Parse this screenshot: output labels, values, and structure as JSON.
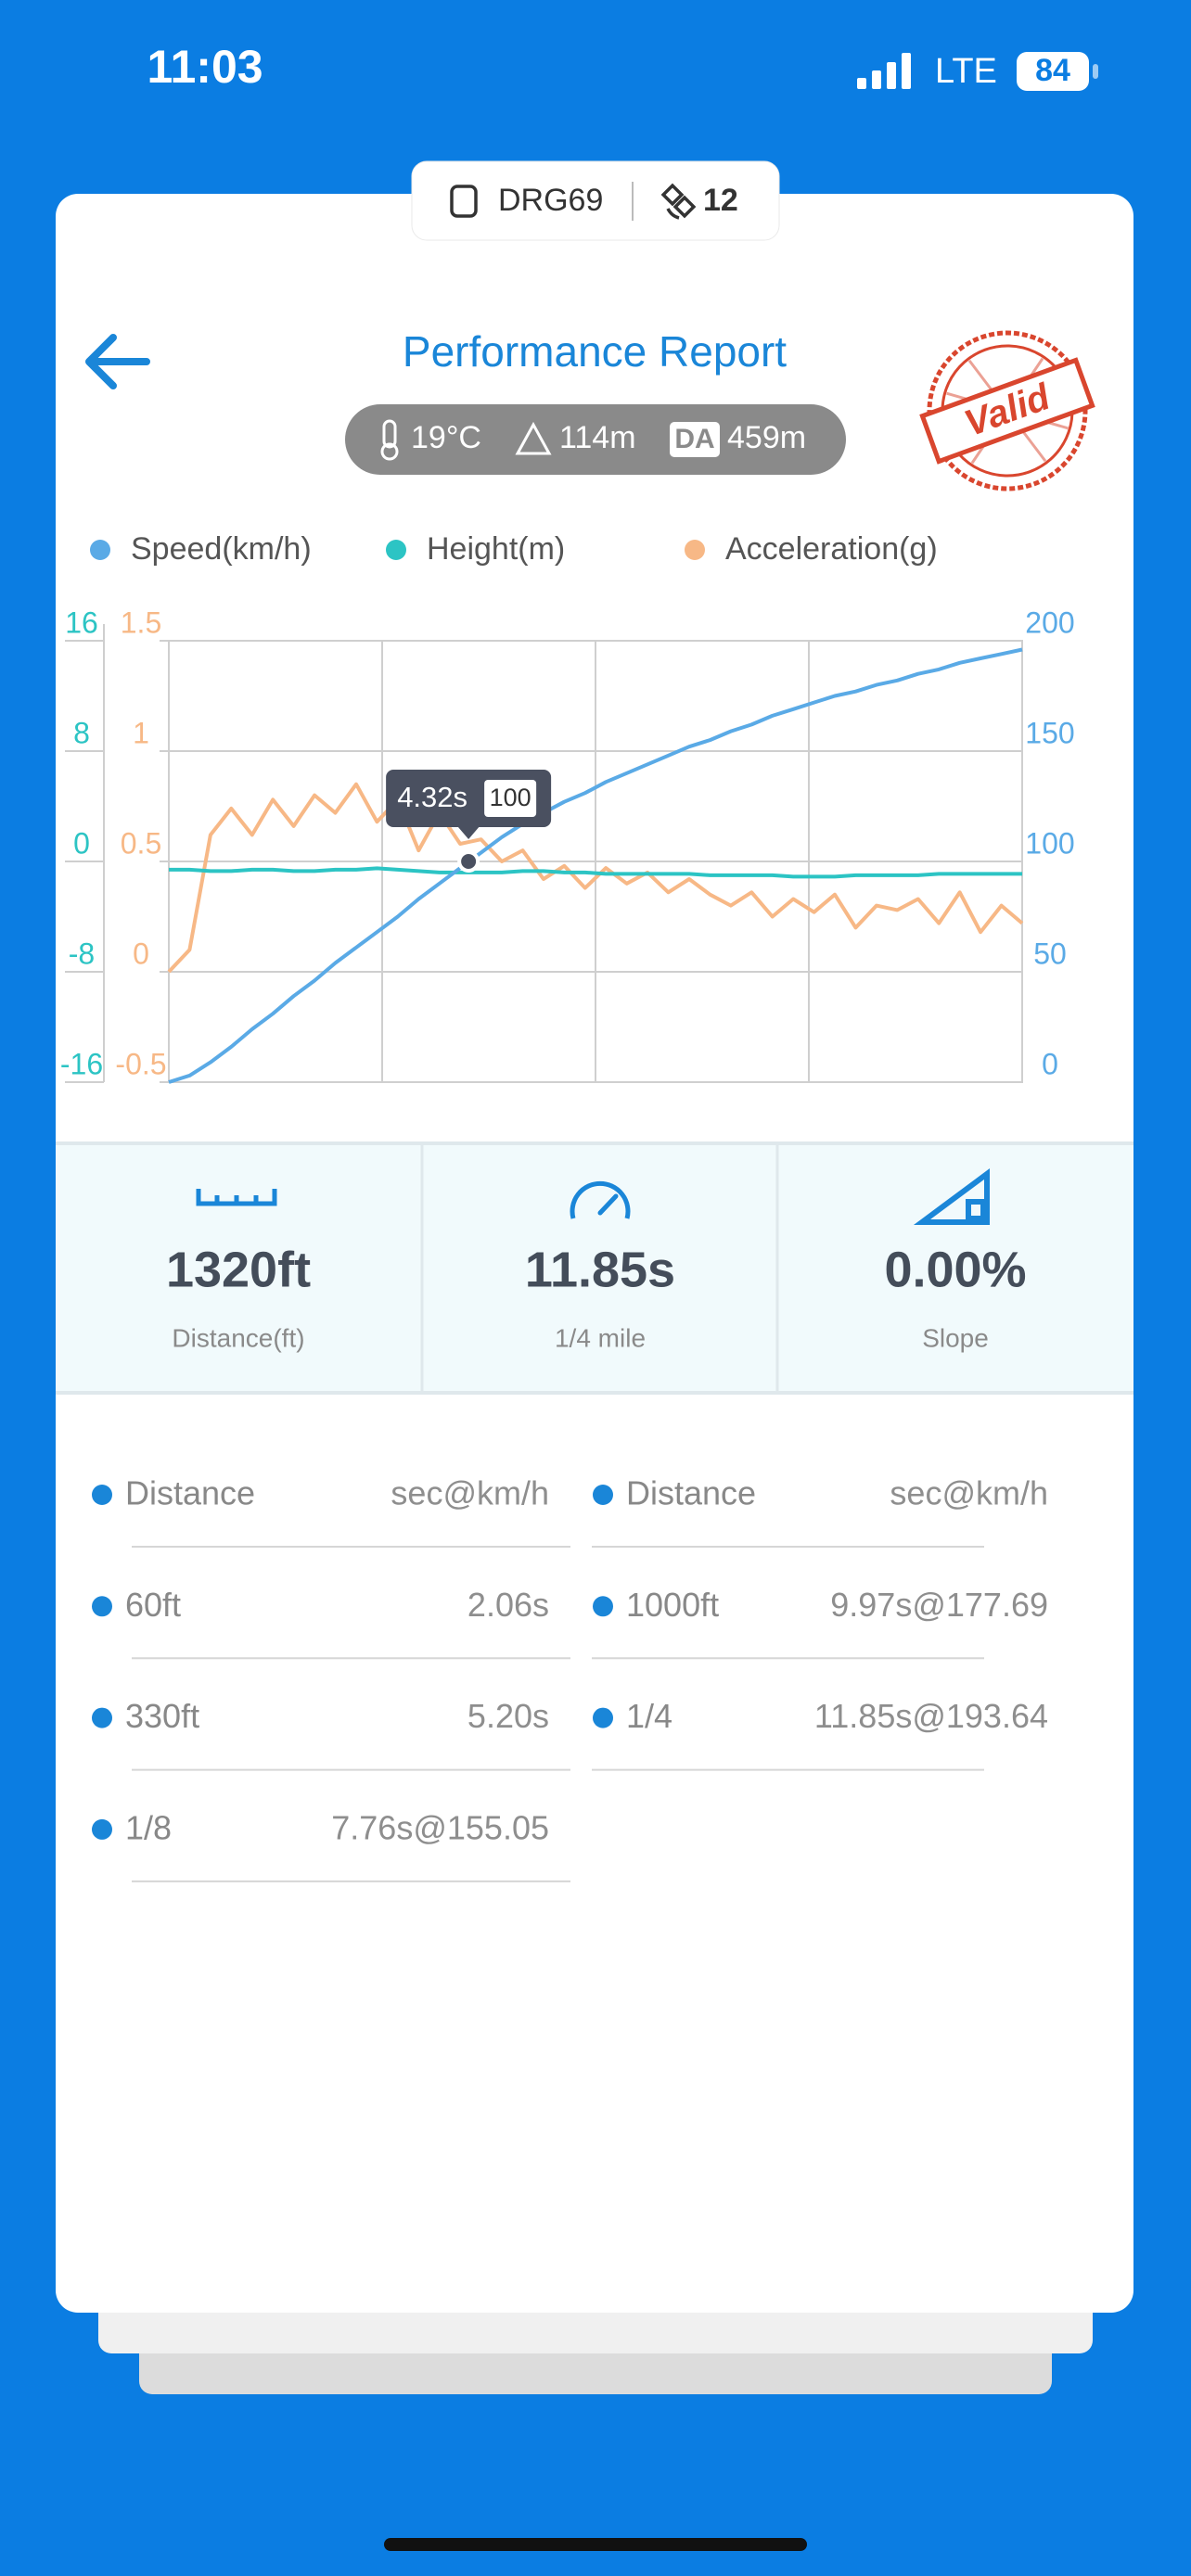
{
  "status_bar": {
    "time": "11:03",
    "network": "LTE",
    "battery": "84"
  },
  "device_pill": {
    "device": "DRG69",
    "satellites": "12"
  },
  "header": {
    "title": "Performance Report",
    "badge": "Valid"
  },
  "conditions": {
    "temperature": "19°C",
    "altitude": "114m",
    "da_label": "DA",
    "density_altitude": "459m"
  },
  "chart_data": {
    "type": "line",
    "x": [
      0,
      0.3,
      0.6,
      0.9,
      1.2,
      1.5,
      1.8,
      2.1,
      2.4,
      2.7,
      3.0,
      3.3,
      3.6,
      3.9,
      4.2,
      4.5,
      4.8,
      5.1,
      5.4,
      5.7,
      6.0,
      6.3,
      6.6,
      6.9,
      7.2,
      7.5,
      7.8,
      8.1,
      8.4,
      8.7,
      9.0,
      9.3,
      9.6,
      9.9,
      10.2,
      10.5,
      10.8,
      11.1,
      11.4,
      11.7,
      12.0,
      12.3
    ],
    "xlim": [
      0,
      12.3
    ],
    "series": [
      {
        "name": "Speed(km/h)",
        "color": "#5aaae6",
        "axis": "y2",
        "values": [
          0,
          3,
          9,
          16,
          24,
          31,
          39,
          46,
          54,
          61,
          68,
          75,
          83,
          90,
          97,
          104,
          111,
          117,
          122,
          127,
          131,
          136,
          140,
          144,
          148,
          152,
          155,
          159,
          162,
          166,
          169,
          172,
          175,
          177,
          180,
          182,
          185,
          187,
          190,
          192,
          194,
          196
        ]
      },
      {
        "name": "Height(m)",
        "color": "#2cc4c4",
        "axis": "y",
        "values": [
          -0.6,
          -0.6,
          -0.7,
          -0.7,
          -0.6,
          -0.6,
          -0.7,
          -0.7,
          -0.6,
          -0.6,
          -0.5,
          -0.6,
          -0.7,
          -0.8,
          -0.8,
          -0.8,
          -0.8,
          -0.7,
          -0.7,
          -0.8,
          -0.8,
          -0.9,
          -0.9,
          -0.9,
          -0.9,
          -0.9,
          -1.0,
          -1.0,
          -1.0,
          -1.0,
          -1.1,
          -1.1,
          -1.1,
          -1.0,
          -1.0,
          -1.0,
          -1.0,
          -0.9,
          -0.9,
          -0.9,
          -0.9,
          -0.9
        ]
      },
      {
        "name": "Acceleration(g)",
        "color": "#f7b886",
        "axis": "y3",
        "values": [
          0,
          0.1,
          0.62,
          0.74,
          0.62,
          0.78,
          0.66,
          0.8,
          0.72,
          0.85,
          0.68,
          0.78,
          0.55,
          0.72,
          0.58,
          0.6,
          0.5,
          0.55,
          0.42,
          0.48,
          0.38,
          0.47,
          0.4,
          0.45,
          0.36,
          0.42,
          0.35,
          0.3,
          0.36,
          0.25,
          0.33,
          0.27,
          0.35,
          0.2,
          0.3,
          0.28,
          0.33,
          0.22,
          0.36,
          0.18,
          0.3,
          0.22
        ]
      }
    ],
    "ylim": [
      -16,
      16
    ],
    "yticks": [
      16,
      8,
      0,
      -8,
      -16
    ],
    "y3lim": [
      -0.5,
      1.5
    ],
    "y3ticks": [
      1.5,
      1,
      0.5,
      0,
      -0.5
    ],
    "y2lim": [
      0,
      200
    ],
    "y2ticks": [
      200,
      150,
      100,
      50,
      0
    ],
    "grid": true,
    "tooltip": {
      "x": 4.32,
      "label": "4.32s",
      "value": 100
    }
  },
  "stats": [
    {
      "value": "1320ft",
      "label": "Distance(ft)"
    },
    {
      "value": "11.85s",
      "label": "1/4 mile"
    },
    {
      "value": "0.00%",
      "label": "Slope"
    }
  ],
  "splits": {
    "columns": [
      {
        "header": [
          "Distance",
          "sec@km/h"
        ],
        "rows": [
          [
            "60ft",
            "2.06s"
          ],
          [
            "330ft",
            "5.20s"
          ],
          [
            "1/8",
            "7.76s@155.05"
          ]
        ]
      },
      {
        "header": [
          "Distance",
          "sec@km/h"
        ],
        "rows": [
          [
            "1000ft",
            "9.97s@177.69"
          ],
          [
            "1/4",
            "11.85s@193.64"
          ]
        ]
      }
    ]
  }
}
